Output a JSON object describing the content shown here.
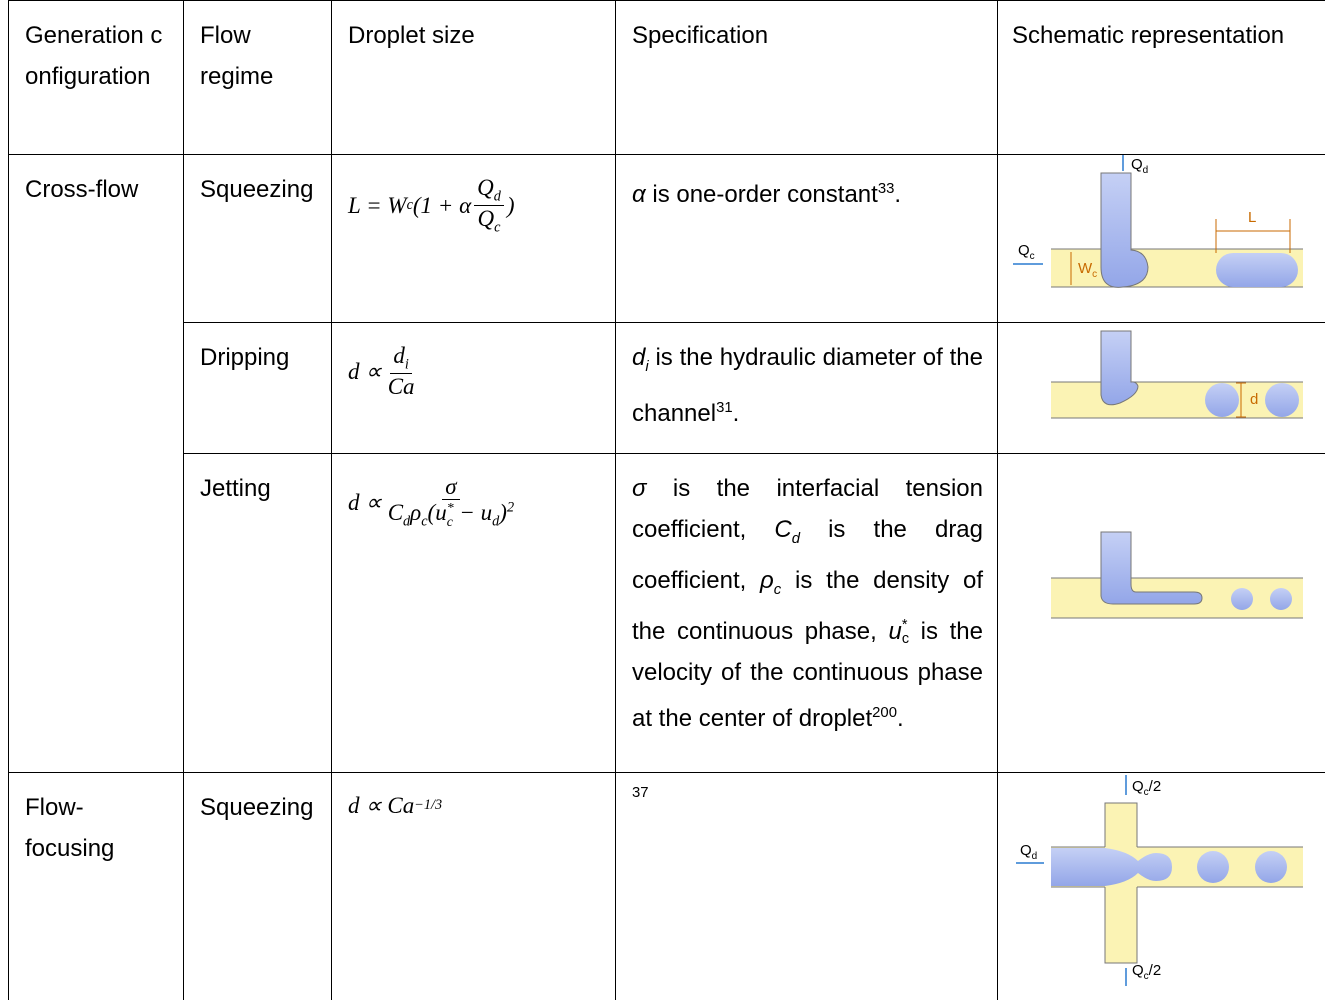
{
  "table": {
    "headers": [
      "Generation configuration",
      "Flow regime",
      "Droplet size",
      "Specification",
      "Schematic representation"
    ],
    "rows": [
      {
        "configuration": "Cross-flow",
        "regime": "Squeezing",
        "formula": [
          {
            "t": "L = W",
            "sub": "c"
          },
          {
            "t": "(1 + α"
          },
          {
            "num": [
              {
                "t": "Q",
                "sub": "d"
              }
            ],
            "den": [
              {
                "t": "Q",
                "sub": "c"
              }
            ]
          },
          {
            "t": ")"
          }
        ],
        "specification": [
          {
            "t": "α",
            "i": true
          },
          {
            "t": " is one-order constant",
            "sup": "33"
          },
          {
            "t": "."
          }
        ],
        "schematic": {
          "top": [
            {
              "t": "Q",
              "sub": "d"
            }
          ],
          "left": [
            {
              "t": "Q",
              "sub": "c"
            }
          ],
          "width": [
            {
              "t": "W",
              "sub": "c"
            }
          ],
          "length": [
            {
              "t": "L"
            }
          ]
        }
      },
      {
        "regime": "Dripping",
        "formula": [
          {
            "t": "d ∝ "
          },
          {
            "num": [
              {
                "t": "d",
                "sub": "i"
              }
            ],
            "den": [
              {
                "t": "Ca"
              }
            ]
          }
        ],
        "specification": [
          {
            "t": "d",
            "i": true,
            "sub": "i"
          },
          {
            "t": " is the hydraulic diameter of the channel",
            "sup": "31"
          },
          {
            "t": "."
          }
        ],
        "schematic": {
          "diameter": [
            {
              "t": "d"
            }
          ]
        }
      },
      {
        "regime": "Jetting",
        "formula": [
          {
            "t": "d ∝ "
          },
          {
            "num": [
              {
                "t": "σ"
              }
            ],
            "den": [
              {
                "t": "C",
                "sub": "d"
              },
              {
                "t": "ρ",
                "sub": "c"
              },
              {
                "t": "(u",
                "sub": "c",
                "sup": "*"
              },
              {
                "t": " − u",
                "sub": "d"
              },
              {
                "t": ")",
                "sup": "2"
              }
            ]
          }
        ],
        "specification": [
          {
            "t": "σ",
            "i": true
          },
          {
            "t": " is the interfacial tension coefficient, "
          },
          {
            "t": "C",
            "i": true,
            "sub": "d"
          },
          {
            "t": " is the drag coefficient, "
          },
          {
            "t": "ρ",
            "i": true,
            "sub": "c"
          },
          {
            "t": " is the density of the continuous phase, "
          },
          {
            "t": "u",
            "i": true,
            "sub": "c",
            "sup": "*"
          },
          {
            "t": " is the velocity of the continuous phase at the center of droplet",
            "sup": "200"
          },
          {
            "t": "."
          }
        ]
      },
      {
        "configuration": "Flow-focusing",
        "regime": "Squeezing",
        "formula": [
          {
            "t": "d ∝ Ca",
            "sup": "−1/3"
          }
        ],
        "specification": [
          {
            "sup": "37"
          }
        ],
        "schematic": {
          "top": [
            {
              "t": "Q",
              "sub": "c"
            },
            {
              "t": "/2"
            }
          ],
          "left": [
            {
              "t": "Q",
              "sub": "d"
            }
          ],
          "bottom": [
            {
              "t": "Q",
              "sub": "c"
            },
            {
              "t": "/2"
            }
          ]
        }
      }
    ]
  }
}
